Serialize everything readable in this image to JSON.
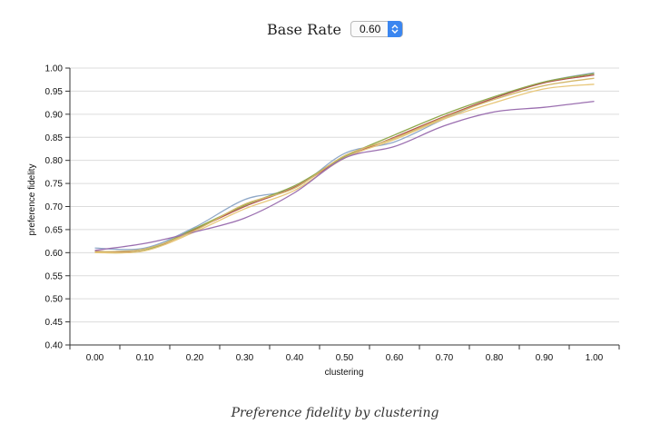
{
  "control": {
    "label": "Base Rate",
    "selected": "0.60"
  },
  "caption": "Preference fidelity by clustering",
  "chart_data": {
    "type": "line",
    "xlabel": "clustering",
    "ylabel": "preference fidelity",
    "xlim": [
      -0.05,
      1.05
    ],
    "ylim": [
      0.4,
      1.0
    ],
    "x_ticks": [
      "0.00",
      "0.10",
      "0.20",
      "0.30",
      "0.40",
      "0.50",
      "0.60",
      "0.70",
      "0.80",
      "0.90",
      "1.00"
    ],
    "y_ticks": [
      "0.40",
      "0.45",
      "0.50",
      "0.55",
      "0.60",
      "0.65",
      "0.70",
      "0.75",
      "0.80",
      "0.85",
      "0.90",
      "0.95",
      "1.00"
    ],
    "grid": "horizontal",
    "x": [
      0.0,
      0.1,
      0.2,
      0.3,
      0.4,
      0.5,
      0.6,
      0.7,
      0.8,
      0.9,
      1.0
    ],
    "series": [
      {
        "color": "#8fa8c8",
        "values": [
          0.61,
          0.61,
          0.655,
          0.715,
          0.74,
          0.815,
          0.84,
          0.89,
          0.935,
          0.97,
          0.99
        ]
      },
      {
        "color": "#b3544f",
        "values": [
          0.603,
          0.605,
          0.65,
          0.7,
          0.742,
          0.805,
          0.85,
          0.895,
          0.935,
          0.968,
          0.985
        ]
      },
      {
        "color": "#8ea84b",
        "values": [
          0.6,
          0.605,
          0.652,
          0.703,
          0.745,
          0.808,
          0.855,
          0.9,
          0.938,
          0.97,
          0.988
        ]
      },
      {
        "color": "#e8c77a",
        "values": [
          0.6,
          0.604,
          0.645,
          0.695,
          0.735,
          0.805,
          0.845,
          0.89,
          0.925,
          0.955,
          0.965
        ]
      },
      {
        "color": "#9b6fb0",
        "values": [
          0.605,
          0.62,
          0.645,
          0.675,
          0.73,
          0.805,
          0.83,
          0.875,
          0.905,
          0.915,
          0.928
        ]
      },
      {
        "color": "#d4b86a",
        "values": [
          0.602,
          0.608,
          0.648,
          0.705,
          0.74,
          0.81,
          0.848,
          0.893,
          0.932,
          0.962,
          0.978
        ]
      }
    ]
  }
}
